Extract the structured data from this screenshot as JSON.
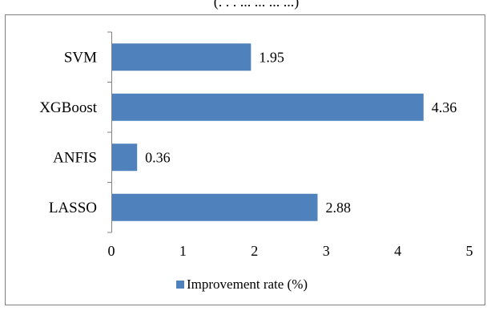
{
  "header_fragment": "(. . . ... ... ... ...)",
  "chart_data": {
    "type": "bar",
    "orientation": "horizontal",
    "categories": [
      "SVM",
      "XGBoost",
      "ANFIS",
      "LASSO"
    ],
    "series": [
      {
        "name": "Improvement rate (%)",
        "values": [
          1.95,
          4.36,
          0.36,
          2.88
        ],
        "data_labels": [
          "1.95",
          "4.36",
          "0.36",
          "2.88"
        ]
      }
    ],
    "xlim": [
      0,
      5
    ],
    "x_ticks": [
      "0",
      "1",
      "2",
      "3",
      "4",
      "5"
    ],
    "grid": false,
    "legend": "bottom",
    "bar_color": "#4f81bd",
    "axis_color": "#808080",
    "frame_color": "#808080"
  }
}
